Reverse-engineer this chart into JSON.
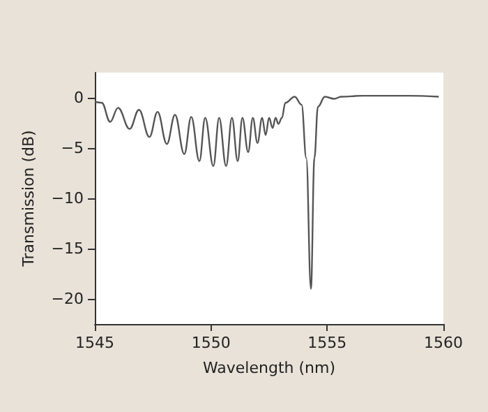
{
  "chart_data": {
    "type": "line",
    "xlabel": "Wavelength (nm)",
    "ylabel": "Transmission (dB)",
    "xlim": [
      1545,
      1560
    ],
    "xticks": [
      1545,
      1550,
      1555,
      1560
    ],
    "ylim": [
      -22.5,
      2.5
    ],
    "yticks": [
      -20,
      -15,
      -10,
      -5,
      0
    ],
    "grid": false,
    "marker": "none",
    "line_style": "solid",
    "series": [
      {
        "color": "#555555",
        "x": [
          1545,
          1545.3,
          1545.66,
          1546.0,
          1546.5,
          1546.9,
          1547.35,
          1547.7,
          1548.1,
          1548.45,
          1548.85,
          1549.15,
          1549.5,
          1549.75,
          1550.1,
          1550.35,
          1550.65,
          1550.9,
          1551.15,
          1551.35,
          1551.6,
          1551.8,
          1552.0,
          1552.2,
          1552.35,
          1552.5,
          1552.65,
          1552.78,
          1552.9,
          1553.05,
          1553.2,
          1553.6,
          1553.9,
          1554.1,
          1554.3,
          1554.45,
          1554.6,
          1554.9,
          1555.3,
          1555.6,
          1556.5,
          1557.5,
          1558.5,
          1559.8
        ],
        "values": [
          -0.4,
          -0.5,
          -2.4,
          -1.0,
          -3.1,
          -1.2,
          -3.9,
          -1.4,
          -4.6,
          -1.7,
          -5.6,
          -1.9,
          -6.3,
          -2.0,
          -6.8,
          -2.0,
          -6.8,
          -2.0,
          -6.3,
          -2.0,
          -5.4,
          -2.0,
          -4.5,
          -2.0,
          -3.7,
          -2.0,
          -3.0,
          -2.0,
          -2.6,
          -2.0,
          -0.5,
          0.1,
          -0.7,
          -6.0,
          -19.0,
          -6.0,
          -0.9,
          0.1,
          -0.1,
          0.1,
          0.2,
          0.2,
          0.2,
          0.1
        ]
      }
    ]
  }
}
